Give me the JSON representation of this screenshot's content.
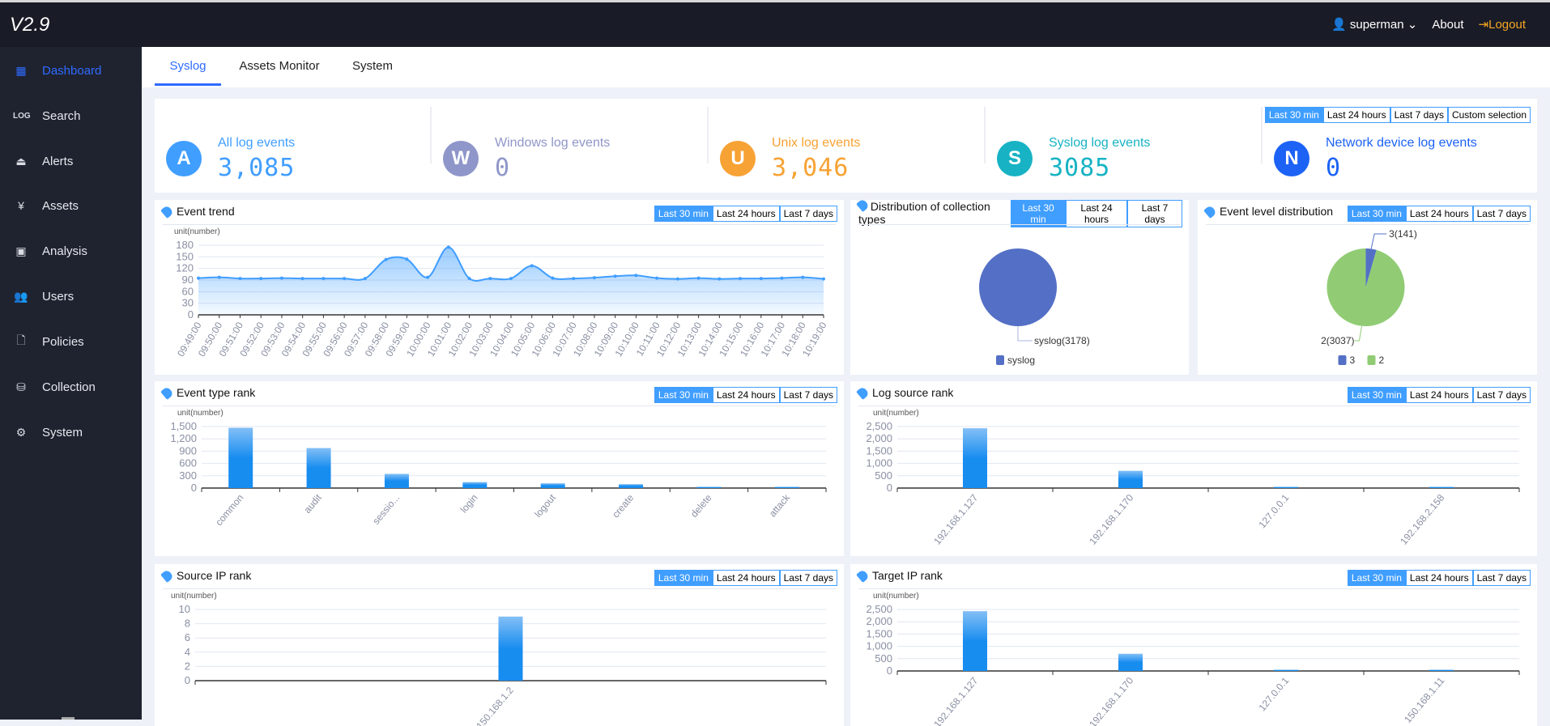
{
  "app": {
    "version": "V2.9",
    "user": "superman",
    "about": "About",
    "logout": "Logout"
  },
  "sidebar": {
    "items": [
      {
        "label": "Dashboard",
        "icon": "grid-icon"
      },
      {
        "label": "Search",
        "icon": "log-icon"
      },
      {
        "label": "Alerts",
        "icon": "alarm-icon"
      },
      {
        "label": "Assets",
        "icon": "asset-icon"
      },
      {
        "label": "Analysis",
        "icon": "chart-icon"
      },
      {
        "label": "Users",
        "icon": "users-icon"
      },
      {
        "label": "Policies",
        "icon": "policy-icon"
      },
      {
        "label": "Collection",
        "icon": "database-icon"
      },
      {
        "label": "System",
        "icon": "gear-icon"
      }
    ]
  },
  "tabs": [
    "Syslog",
    "Assets Monitor",
    "System"
  ],
  "ranges": {
    "min30": "Last 30 min",
    "h24": "Last 24 hours",
    "d7": "Last 7 days",
    "custom": "Custom selection"
  },
  "stats": [
    {
      "letter": "A",
      "label": "All log events",
      "value": "3,085",
      "color": "#409eff"
    },
    {
      "letter": "W",
      "label": "Windows log events",
      "value": "0",
      "color": "#8f96c9"
    },
    {
      "letter": "U",
      "label": "Unix log events",
      "value": "3,046",
      "color": "#f7a234"
    },
    {
      "letter": "S",
      "label": "Syslog log events",
      "value": "3085",
      "color": "#17b3c4"
    },
    {
      "letter": "N",
      "label": "Network device log events",
      "value": "0",
      "color": "#1c62f5"
    }
  ],
  "panels": {
    "trend": "Event trend",
    "dist": "Distribution of collection types",
    "level": "Event level distribution",
    "etype": "Event type rank",
    "lsrc": "Log source rank",
    "sip": "Source IP rank",
    "tip": "Target IP rank"
  },
  "chart_data": [
    {
      "id": "trend",
      "type": "area",
      "unit": "unit(number)",
      "ylim": [
        0,
        180
      ],
      "yticks": [
        0,
        30,
        60,
        90,
        120,
        150,
        180
      ],
      "categories": [
        "09:49:00",
        "09:50:00",
        "09:51:00",
        "09:52:00",
        "09:53:00",
        "09:54:00",
        "09:55:00",
        "09:56:00",
        "09:57:00",
        "09:58:00",
        "09:59:00",
        "10:00:00",
        "10:01:00",
        "10:02:00",
        "10:03:00",
        "10:04:00",
        "10:05:00",
        "10:06:00",
        "10:07:00",
        "10:08:00",
        "10:09:00",
        "10:10:00",
        "10:11:00",
        "10:12:00",
        "10:13:00",
        "10:14:00",
        "10:15:00",
        "10:16:00",
        "10:17:00",
        "10:18:00",
        "10:19:00"
      ],
      "values": [
        95,
        97,
        94,
        94,
        95,
        94,
        94,
        94,
        94,
        143,
        144,
        97,
        175,
        94,
        94,
        94,
        127,
        95,
        94,
        96,
        100,
        102,
        95,
        93,
        95,
        93,
        94,
        94,
        95,
        97,
        93
      ]
    },
    {
      "id": "dist",
      "type": "pie",
      "slices": [
        {
          "name": "syslog",
          "value": 3178,
          "label": "syslog(3178)",
          "color": "#5470c6"
        }
      ],
      "legend": [
        "syslog"
      ]
    },
    {
      "id": "level",
      "type": "pie",
      "slices": [
        {
          "name": "3",
          "value": 141,
          "label": "3(141)",
          "color": "#5470c6"
        },
        {
          "name": "2",
          "value": 3037,
          "label": "2(3037)",
          "color": "#91cc75"
        }
      ],
      "legend": [
        "3",
        "2"
      ]
    },
    {
      "id": "etype",
      "type": "bar",
      "unit": "unit(number)",
      "ylim": [
        0,
        1500
      ],
      "yticks": [
        "0",
        "300",
        "600",
        "900",
        "1,200",
        "1,500"
      ],
      "categories": [
        "common",
        "audit",
        "sessio...",
        "login",
        "logout",
        "create",
        "delete",
        "attack"
      ],
      "values": [
        1470,
        975,
        345,
        145,
        115,
        95,
        30,
        30
      ]
    },
    {
      "id": "lsrc",
      "type": "bar",
      "unit": "unit(number)",
      "ylim": [
        0,
        2500
      ],
      "yticks": [
        "0",
        "500",
        "1,000",
        "1,500",
        "2,000",
        "2,500"
      ],
      "categories": [
        "192.168.1.127",
        "192.168.1.170",
        "127.0.0.1",
        "192.168.2.158"
      ],
      "values": [
        2430,
        700,
        50,
        50
      ]
    },
    {
      "id": "sip",
      "type": "bar",
      "unit": "unit(number)",
      "ylim": [
        0,
        10
      ],
      "yticks": [
        "0",
        "2",
        "4",
        "6",
        "8",
        "10"
      ],
      "categories": [
        "150.168.1.2"
      ],
      "values": [
        9
      ]
    },
    {
      "id": "tip",
      "type": "bar",
      "unit": "unit(number)",
      "ylim": [
        0,
        2500
      ],
      "yticks": [
        "0",
        "500",
        "1,000",
        "1,500",
        "2,000",
        "2,500"
      ],
      "categories": [
        "192.168.1.127",
        "192.168.1.170",
        "127.0.0.1",
        "150.168.1.11"
      ],
      "values": [
        2430,
        700,
        50,
        50
      ]
    }
  ]
}
